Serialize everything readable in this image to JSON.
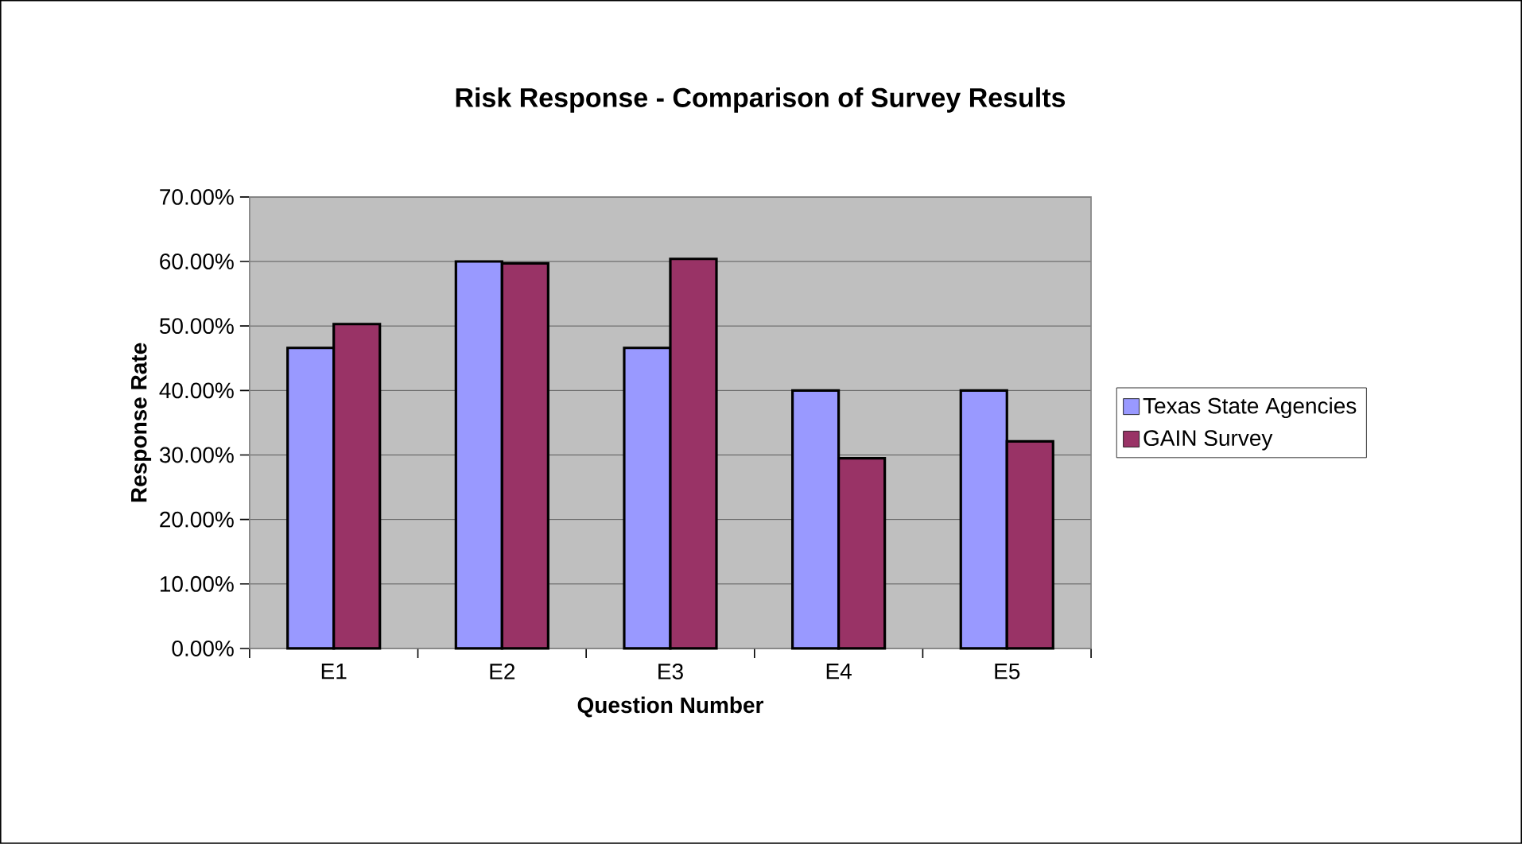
{
  "chart_data": {
    "type": "bar",
    "title": "Risk Response - Comparison of Survey Results",
    "xlabel": "Question Number",
    "ylabel": "Response Rate",
    "categories": [
      "E1",
      "E2",
      "E3",
      "E4",
      "E5"
    ],
    "series": [
      {
        "name": "Texas State Agencies",
        "color": "#9999ff",
        "values": [
          46.6,
          60.0,
          46.6,
          40.0,
          40.0
        ]
      },
      {
        "name": "GAIN Survey",
        "color": "#993366",
        "values": [
          50.3,
          59.7,
          60.4,
          29.5,
          32.1
        ]
      }
    ],
    "ylim": [
      0,
      70
    ],
    "yticks": [
      {
        "value": 0,
        "label": "0.00%"
      },
      {
        "value": 10,
        "label": "10.00%"
      },
      {
        "value": 20,
        "label": "20.00%"
      },
      {
        "value": 30,
        "label": "30.00%"
      },
      {
        "value": 40,
        "label": "40.00%"
      },
      {
        "value": 50,
        "label": "50.00%"
      },
      {
        "value": 60,
        "label": "60.00%"
      },
      {
        "value": 70,
        "label": "70.00%"
      }
    ],
    "grid": "y",
    "legend": "right"
  }
}
